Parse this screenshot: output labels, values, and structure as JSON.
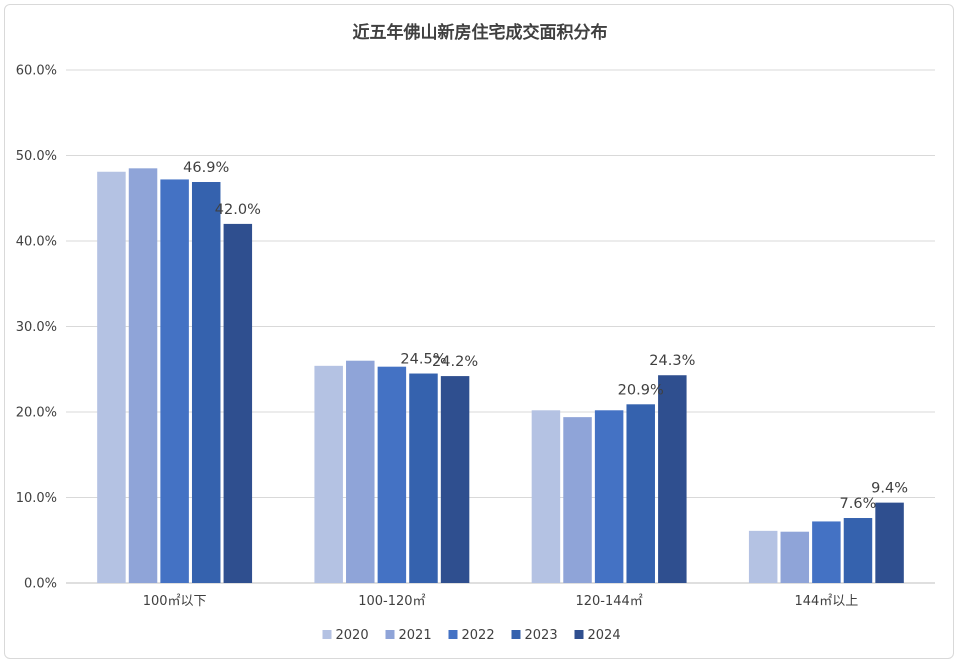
{
  "chart_data": {
    "type": "bar",
    "title": "近五年佛山新房住宅成交面积分布",
    "xlabel": "",
    "ylabel": "",
    "ylim": [
      0,
      60
    ],
    "yticks": [
      "0.0%",
      "10.0%",
      "20.0%",
      "30.0%",
      "40.0%",
      "50.0%",
      "60.0%"
    ],
    "categories": [
      "100㎡以下",
      "100-120㎡",
      "120-144㎡",
      "144㎡以上"
    ],
    "series": [
      {
        "name": "2020",
        "color": "#b4c2e3",
        "values": [
          48.1,
          25.4,
          20.2,
          6.1
        ],
        "labels": [
          "",
          "",
          "",
          ""
        ]
      },
      {
        "name": "2021",
        "color": "#8fa4d8",
        "values": [
          48.5,
          26.0,
          19.4,
          6.0
        ],
        "labels": [
          "",
          "",
          "",
          ""
        ]
      },
      {
        "name": "2022",
        "color": "#4472c4",
        "values": [
          47.2,
          25.3,
          20.2,
          7.2
        ],
        "labels": [
          "",
          "",
          "",
          ""
        ]
      },
      {
        "name": "2023",
        "color": "#3562ae",
        "values": [
          46.9,
          24.5,
          20.9,
          7.6
        ],
        "labels": [
          "46.9%",
          "24.5%",
          "20.9%",
          "7.6%"
        ]
      },
      {
        "name": "2024",
        "color": "#2f4f8f",
        "values": [
          42.0,
          24.2,
          24.3,
          9.4
        ],
        "labels": [
          "42.0%",
          "24.2%",
          "24.3%",
          "9.4%"
        ]
      }
    ],
    "grid": true,
    "legend": "bottom"
  }
}
